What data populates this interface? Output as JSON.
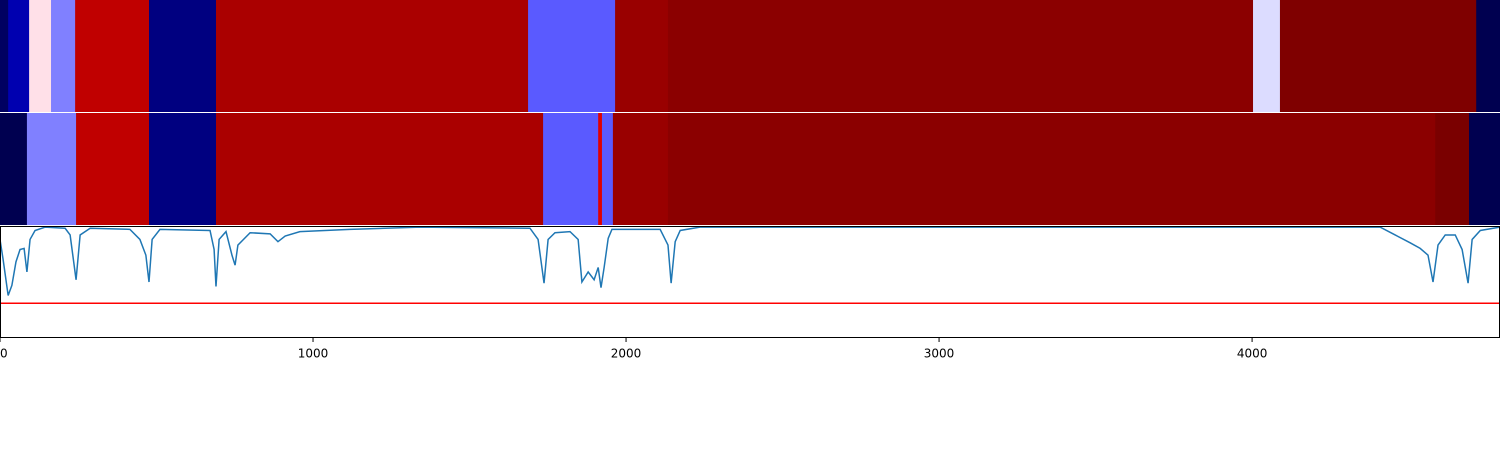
{
  "chart_data": [
    {
      "type": "segment",
      "xlim": [
        0,
        4792
      ],
      "segments": [
        {
          "start": 0,
          "end": 26,
          "color": "#000060"
        },
        {
          "start": 26,
          "end": 93,
          "color": "#0000b0"
        },
        {
          "start": 93,
          "end": 163,
          "color": "#ffe0e8"
        },
        {
          "start": 163,
          "end": 240,
          "color": "#8080ff"
        },
        {
          "start": 240,
          "end": 476,
          "color": "#c00000"
        },
        {
          "start": 476,
          "end": 690,
          "color": "#000080"
        },
        {
          "start": 690,
          "end": 1687,
          "color": "#aa0000"
        },
        {
          "start": 1687,
          "end": 1965,
          "color": "#5a5aff"
        },
        {
          "start": 1965,
          "end": 2134,
          "color": "#990000"
        },
        {
          "start": 2134,
          "end": 4003,
          "color": "#8b0000"
        },
        {
          "start": 4003,
          "end": 4089,
          "color": "#dcdcff"
        },
        {
          "start": 4089,
          "end": 4716,
          "color": "#7f0000"
        },
        {
          "start": 4716,
          "end": 4792,
          "color": "#000050"
        }
      ]
    },
    {
      "type": "segment",
      "xlim": [
        0,
        4792
      ],
      "segments": [
        {
          "start": 0,
          "end": 86,
          "color": "#000050"
        },
        {
          "start": 86,
          "end": 243,
          "color": "#8080ff"
        },
        {
          "start": 243,
          "end": 476,
          "color": "#c00000"
        },
        {
          "start": 476,
          "end": 690,
          "color": "#000080"
        },
        {
          "start": 690,
          "end": 1735,
          "color": "#aa0000"
        },
        {
          "start": 1735,
          "end": 1911,
          "color": "#5a5aff"
        },
        {
          "start": 1911,
          "end": 1923,
          "color": "#e00000"
        },
        {
          "start": 1923,
          "end": 1958,
          "color": "#5a5aff"
        },
        {
          "start": 1958,
          "end": 2134,
          "color": "#990000"
        },
        {
          "start": 2134,
          "end": 4585,
          "color": "#8b0000"
        },
        {
          "start": 4585,
          "end": 4693,
          "color": "#7a0000"
        },
        {
          "start": 4693,
          "end": 4792,
          "color": "#000050"
        }
      ]
    },
    {
      "type": "line",
      "xlim": [
        0,
        4792
      ],
      "ylim": [
        0,
        1
      ],
      "xticks": [
        0,
        1000,
        2000,
        3000,
        4000
      ],
      "threshold": 0.31,
      "threshold_color": "#ff0000",
      "series": [
        {
          "color": "#1f77b4",
          "x": [
            0,
            10,
            26,
            38,
            51,
            64,
            77,
            86,
            96,
            112,
            144,
            208,
            224,
            243,
            256,
            288,
            415,
            447,
            466,
            476,
            486,
            511,
            671,
            684,
            690,
            700,
            722,
            741,
            751,
            760,
            799,
            863,
            888,
            911,
            958,
            1118,
            1342,
            1693,
            1719,
            1738,
            1751,
            1773,
            1821,
            1847,
            1859,
            1879,
            1898,
            1911,
            1920,
            1930,
            1943,
            1955,
            2109,
            2134,
            2144,
            2157,
            2173,
            2236,
            3195,
            4409,
            4457,
            4505,
            4537,
            4562,
            4578,
            4594,
            4617,
            4649,
            4671,
            4690,
            4703,
            4729,
            4792
          ],
          "values": [
            0.88,
            0.7,
            0.38,
            0.47,
            0.68,
            0.79,
            0.8,
            0.59,
            0.88,
            0.96,
            0.99,
            0.98,
            0.92,
            0.52,
            0.92,
            0.98,
            0.97,
            0.88,
            0.74,
            0.5,
            0.88,
            0.97,
            0.96,
            0.79,
            0.46,
            0.88,
            0.95,
            0.74,
            0.65,
            0.83,
            0.94,
            0.93,
            0.86,
            0.91,
            0.95,
            0.97,
            0.99,
            0.98,
            0.88,
            0.49,
            0.88,
            0.94,
            0.95,
            0.88,
            0.5,
            0.59,
            0.52,
            0.63,
            0.45,
            0.63,
            0.89,
            0.97,
            0.97,
            0.83,
            0.49,
            0.86,
            0.96,
            0.99,
            0.99,
            0.99,
            0.92,
            0.85,
            0.8,
            0.74,
            0.5,
            0.83,
            0.92,
            0.92,
            0.79,
            0.49,
            0.88,
            0.96,
            0.99
          ]
        }
      ]
    }
  ]
}
